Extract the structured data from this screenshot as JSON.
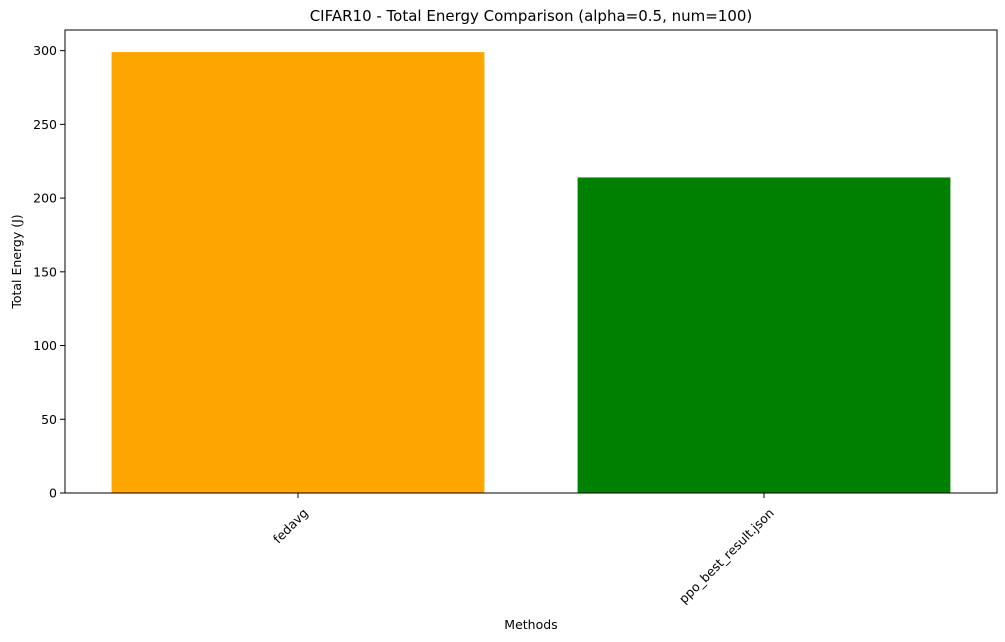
{
  "chart_data": {
    "type": "bar",
    "title": "CIFAR10 - Total Energy Comparison (alpha=0.5, num=100)",
    "xlabel": "Methods",
    "ylabel": "Total Energy (J)",
    "categories": [
      "fedavg",
      "ppo_best_result.json"
    ],
    "values": [
      299,
      214
    ],
    "colors": [
      "#ffa500",
      "#008000"
    ],
    "ylim": [
      0,
      314
    ],
    "yticks": [
      0,
      50,
      100,
      150,
      200,
      250,
      300
    ],
    "grid": false,
    "xtick_rotation": 45
  }
}
